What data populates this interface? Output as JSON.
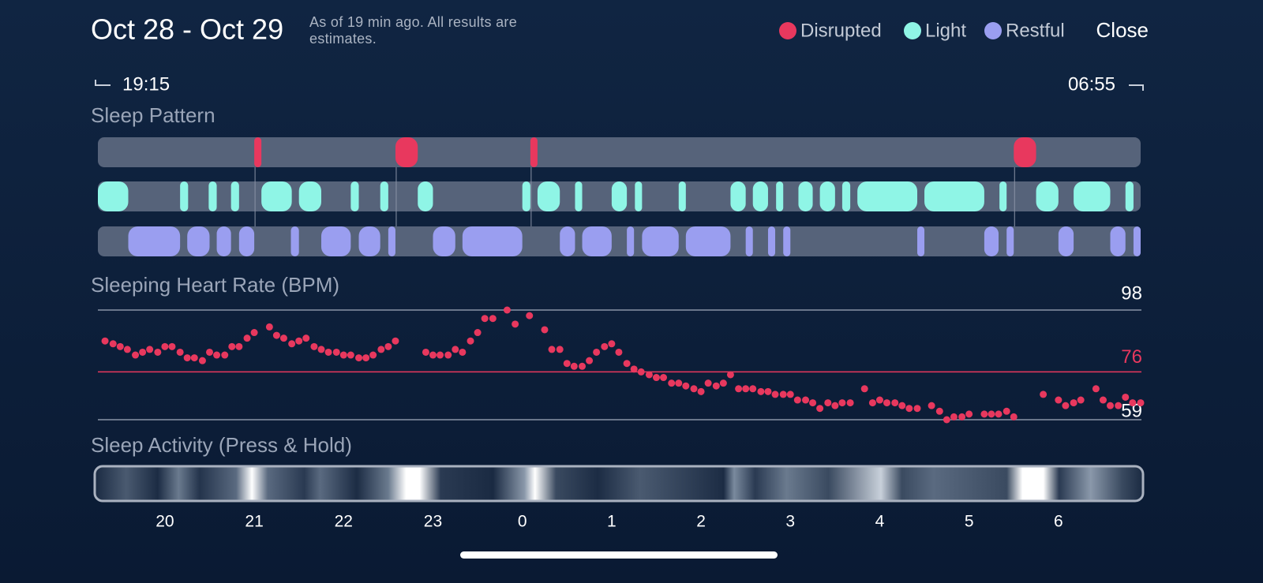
{
  "header": {
    "title": "Oct 28 - Oct 29",
    "subtitle": "As of 19 min ago. All results are estimates.",
    "close": "Close"
  },
  "range": {
    "start": "19:15",
    "end": "06:55"
  },
  "time_axis": {
    "xlim": [
      19.25,
      30.92
    ],
    "xticks": [
      20,
      21,
      22,
      23,
      {
        "value": 24,
        "label": "0"
      },
      {
        "value": 25,
        "label": "1"
      },
      {
        "value": 26,
        "label": "2"
      },
      {
        "value": 27,
        "label": "3"
      },
      {
        "value": 28,
        "label": "4"
      },
      {
        "value": 29,
        "label": "5"
      },
      {
        "value": 30,
        "label": "6"
      }
    ]
  },
  "sleep_pattern": {
    "title": "Sleep Pattern",
    "stages": [
      {
        "name": "Disrupted",
        "color": "#e8385e",
        "segments": [
          [
            21.0,
            21.08
          ],
          [
            22.58,
            22.83
          ],
          [
            24.09,
            24.17
          ],
          [
            29.5,
            29.75
          ]
        ]
      },
      {
        "name": "Light",
        "color": "#8ff5e6",
        "segments": [
          [
            19.25,
            19.59
          ],
          [
            20.17,
            20.26
          ],
          [
            20.49,
            20.58
          ],
          [
            20.74,
            20.83
          ],
          [
            21.08,
            21.42
          ],
          [
            21.5,
            21.75
          ],
          [
            22.08,
            22.17
          ],
          [
            22.41,
            22.5
          ],
          [
            22.83,
            23.0
          ],
          [
            24.0,
            24.09
          ],
          [
            24.17,
            24.42
          ],
          [
            24.59,
            24.67
          ],
          [
            25.0,
            25.17
          ],
          [
            25.26,
            25.34
          ],
          [
            25.75,
            25.83
          ],
          [
            26.33,
            26.5
          ],
          [
            26.58,
            26.75
          ],
          [
            26.84,
            26.92
          ],
          [
            27.09,
            27.25
          ],
          [
            27.33,
            27.5
          ],
          [
            27.58,
            27.67
          ],
          [
            27.75,
            28.42
          ],
          [
            28.5,
            29.17
          ],
          [
            29.34,
            29.42
          ],
          [
            29.75,
            30.0
          ],
          [
            30.17,
            30.58
          ],
          [
            30.75,
            30.84
          ]
        ]
      },
      {
        "name": "Restful",
        "color": "#9a9ef0",
        "segments": [
          [
            19.59,
            20.17
          ],
          [
            20.25,
            20.5
          ],
          [
            20.58,
            20.74
          ],
          [
            20.83,
            21.0
          ],
          [
            21.41,
            21.5
          ],
          [
            21.75,
            22.08
          ],
          [
            22.17,
            22.41
          ],
          [
            22.5,
            22.58
          ],
          [
            23.0,
            23.25
          ],
          [
            23.33,
            24.0
          ],
          [
            24.42,
            24.59
          ],
          [
            24.67,
            25.0
          ],
          [
            25.17,
            25.25
          ],
          [
            25.34,
            25.75
          ],
          [
            25.83,
            26.33
          ],
          [
            26.5,
            26.58
          ],
          [
            26.75,
            26.83
          ],
          [
            26.92,
            27.0
          ],
          [
            28.42,
            28.5
          ],
          [
            29.17,
            29.33
          ],
          [
            29.42,
            29.5
          ],
          [
            30.0,
            30.17
          ],
          [
            30.58,
            30.75
          ],
          [
            30.84,
            30.92
          ]
        ]
      }
    ]
  },
  "heart_rate": {
    "title": "Sleeping Heart Rate (BPM)",
    "max": 98,
    "avg": 76,
    "min": 59,
    "color": "#e8385e",
    "x": [
      19.33,
      19.42,
      19.5,
      19.58,
      19.67,
      19.75,
      19.83,
      19.92,
      20.0,
      20.08,
      20.17,
      20.25,
      20.33,
      20.42,
      20.5,
      20.58,
      20.67,
      20.75,
      20.83,
      20.92,
      21.0,
      21.17,
      21.25,
      21.33,
      21.42,
      21.5,
      21.58,
      21.67,
      21.75,
      21.83,
      21.92,
      22.0,
      22.08,
      22.17,
      22.25,
      22.33,
      22.42,
      22.5,
      22.58,
      22.92,
      23.0,
      23.08,
      23.17,
      23.25,
      23.33,
      23.42,
      23.5,
      23.58,
      23.67,
      23.83,
      23.92,
      24.08,
      24.25,
      24.33,
      24.42,
      24.5,
      24.58,
      24.67,
      24.75,
      24.83,
      24.92,
      25.0,
      25.08,
      25.17,
      25.25,
      25.33,
      25.42,
      25.5,
      25.58,
      25.67,
      25.75,
      25.83,
      25.92,
      26.0,
      26.08,
      26.17,
      26.25,
      26.33,
      26.42,
      26.5,
      26.58,
      26.67,
      26.75,
      26.83,
      26.92,
      27.0,
      27.08,
      27.17,
      27.25,
      27.33,
      27.42,
      27.5,
      27.58,
      27.67,
      27.83,
      27.92,
      28.0,
      28.08,
      28.17,
      28.25,
      28.33,
      28.42,
      28.58,
      28.67,
      28.75,
      28.83,
      28.92,
      29.0,
      29.17,
      29.25,
      29.33,
      29.42,
      29.5,
      29.83,
      30.0,
      30.08,
      30.17,
      30.25,
      30.42,
      30.5,
      30.58,
      30.67,
      30.75,
      30.83,
      30.92
    ],
    "values": [
      87,
      86,
      85,
      84,
      82,
      83,
      84,
      83,
      85,
      85,
      83,
      81,
      81,
      80,
      83,
      82,
      82,
      85,
      85,
      88,
      90,
      92,
      89,
      88,
      86,
      87,
      88,
      85,
      84,
      83,
      83,
      82,
      82,
      81,
      81,
      82,
      84,
      85,
      87,
      83,
      82,
      82,
      82,
      84,
      83,
      87,
      90,
      95,
      95,
      98,
      93,
      96,
      91,
      84,
      84,
      79,
      78,
      78,
      80,
      83,
      85,
      86,
      83,
      79,
      77,
      76,
      75,
      74,
      74,
      72,
      72,
      71,
      70,
      69,
      72,
      71,
      72,
      75,
      70,
      70,
      70,
      69,
      69,
      68,
      68,
      68,
      66,
      66,
      65,
      63,
      65,
      64,
      65,
      65,
      70,
      65,
      66,
      65,
      65,
      64,
      63,
      63,
      64,
      62,
      59,
      60,
      60,
      61,
      61,
      61,
      61,
      62,
      60,
      68,
      66,
      64,
      65,
      66,
      70,
      66,
      64,
      64,
      67,
      65,
      65
    ]
  },
  "activity": {
    "title": "Sleep Activity (Press & Hold)"
  }
}
